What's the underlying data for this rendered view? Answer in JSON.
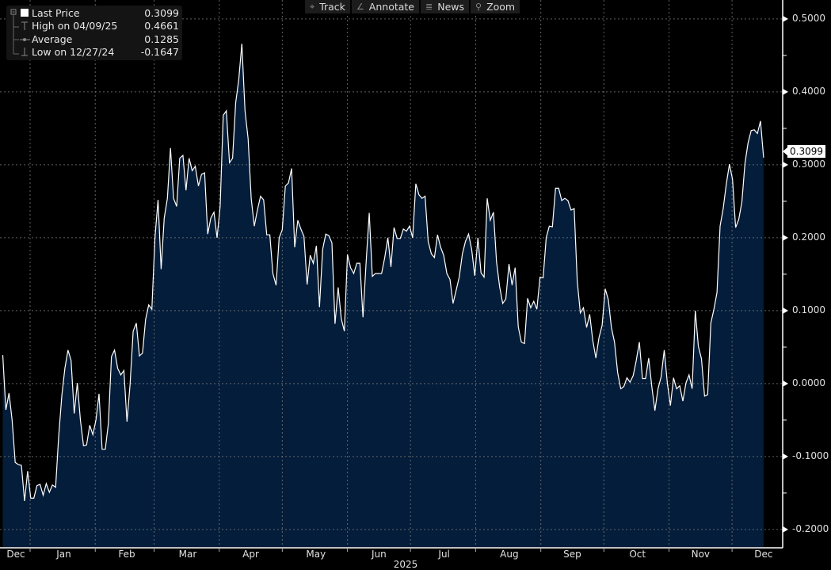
{
  "toolbar": {
    "track": "Track",
    "annotate": "Annotate",
    "news": "News",
    "zoom": "Zoom"
  },
  "legend": {
    "last_label": "Last Price",
    "last_value": "0.3099",
    "high_label": "High on 04/09/25",
    "high_value": "0.4661",
    "avg_label": "Average",
    "avg_value": "0.1285",
    "low_label": "Low on 12/27/24",
    "low_value": "-0.1647"
  },
  "last_price_tag": "0.3099",
  "colors": {
    "line": "#ffffff",
    "fill": "#041d3a",
    "grid": "#7a7a7a",
    "background": "#000000"
  },
  "chart_data": {
    "type": "area",
    "title": "",
    "x_start_day": -13,
    "x_end_day": 349,
    "x_day_origin": "2025-01-01",
    "xlabel": "2025",
    "ylim": [
      -0.224,
      0.526
    ],
    "y_ticks": [
      0.5,
      0.4,
      0.3,
      0.2,
      0.1,
      0.0,
      -0.1,
      -0.2
    ],
    "y_tick_labels": [
      "0.5000",
      "0.4000",
      "0.3000",
      "0.2000",
      "0.1000",
      "0.0000",
      "-0.1000",
      "-0.2000"
    ],
    "month_boundaries": [
      0,
      31,
      59,
      90,
      120,
      151,
      181,
      212,
      243,
      273,
      304,
      334
    ],
    "x_tick_labels": [
      {
        "label": "Dec",
        "day": -7
      },
      {
        "label": "Jan",
        "day": 16
      },
      {
        "label": "Feb",
        "day": 46
      },
      {
        "label": "Mar",
        "day": 75
      },
      {
        "label": "Apr",
        "day": 105
      },
      {
        "label": "May",
        "day": 136
      },
      {
        "label": "Jun",
        "day": 166
      },
      {
        "label": "Jul",
        "day": 197
      },
      {
        "label": "Aug",
        "day": 228
      },
      {
        "label": "Sep",
        "day": 258
      },
      {
        "label": "Oct",
        "day": 289
      },
      {
        "label": "Nov",
        "day": 319
      },
      {
        "label": "Dec",
        "day": 349
      }
    ],
    "grid": true,
    "legend_position": "top-left",
    "values": [
      0.039,
      -0.036,
      -0.013,
      -0.05,
      -0.108,
      -0.111,
      -0.112,
      -0.161,
      -0.12,
      -0.157,
      -0.157,
      -0.14,
      -0.138,
      -0.153,
      -0.137,
      -0.149,
      -0.139,
      -0.142,
      -0.072,
      -0.017,
      0.021,
      0.046,
      0.032,
      -0.041,
      0.001,
      -0.05,
      -0.085,
      -0.084,
      -0.057,
      -0.07,
      -0.05,
      -0.014,
      -0.09,
      -0.09,
      -0.055,
      0.037,
      0.046,
      0.021,
      0.012,
      0.018,
      -0.052,
      -0.001,
      0.072,
      0.083,
      0.038,
      0.042,
      0.088,
      0.108,
      0.102,
      0.2,
      0.252,
      0.157,
      0.227,
      0.254,
      0.323,
      0.254,
      0.243,
      0.309,
      0.313,
      0.265,
      0.309,
      0.292,
      0.298,
      0.271,
      0.287,
      0.289,
      0.205,
      0.227,
      0.235,
      0.2,
      0.243,
      0.368,
      0.374,
      0.303,
      0.309,
      0.385,
      0.417,
      0.466,
      0.374,
      0.336,
      0.254,
      0.216,
      0.238,
      0.257,
      0.252,
      0.204,
      0.204,
      0.151,
      0.135,
      0.2,
      0.211,
      0.271,
      0.275,
      0.295,
      0.187,
      0.224,
      0.212,
      0.202,
      0.136,
      0.176,
      0.165,
      0.189,
      0.105,
      0.184,
      0.205,
      0.203,
      0.193,
      0.082,
      0.132,
      0.089,
      0.072,
      0.177,
      0.159,
      0.151,
      0.165,
      0.165,
      0.091,
      0.165,
      0.234,
      0.147,
      0.151,
      0.151,
      0.151,
      0.173,
      0.2,
      0.16,
      0.214,
      0.199,
      0.199,
      0.212,
      0.209,
      0.216,
      0.2,
      0.274,
      0.259,
      0.254,
      0.257,
      0.195,
      0.178,
      0.173,
      0.204,
      0.187,
      0.176,
      0.151,
      0.143,
      0.11,
      0.128,
      0.146,
      0.178,
      0.195,
      0.205,
      0.184,
      0.148,
      0.2,
      0.152,
      0.146,
      0.254,
      0.224,
      0.235,
      0.167,
      0.133,
      0.11,
      0.116,
      0.164,
      0.135,
      0.159,
      0.078,
      0.057,
      0.055,
      0.117,
      0.104,
      0.113,
      0.102,
      0.146,
      0.145,
      0.2,
      0.216,
      0.215,
      0.268,
      0.268,
      0.251,
      0.254,
      0.251,
      0.238,
      0.24,
      0.14,
      0.097,
      0.104,
      0.077,
      0.095,
      0.059,
      0.035,
      0.063,
      0.08,
      0.13,
      0.115,
      0.077,
      0.057,
      0.015,
      -0.007,
      -0.004,
      0.008,
      0.002,
      0.011,
      0.032,
      0.057,
      0.007,
      0.007,
      0.035,
      -0.004,
      -0.037,
      -0.007,
      0.009,
      0.046,
      0.001,
      -0.03,
      0.008,
      -0.007,
      -0.003,
      -0.024,
      0.001,
      0.012,
      -0.007,
      0.1,
      0.051,
      0.034,
      -0.017,
      -0.015,
      0.083,
      0.102,
      0.125,
      0.216,
      0.24,
      0.274,
      0.301,
      0.28,
      0.214,
      0.225,
      0.249,
      0.302,
      0.33,
      0.347,
      0.348,
      0.343,
      0.36,
      0.3099
    ]
  }
}
